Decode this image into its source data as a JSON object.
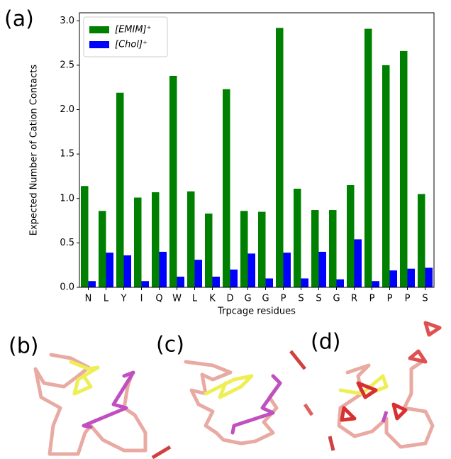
{
  "chart_data": {
    "type": "bar",
    "panel_label": "(a)",
    "categories": [
      "N",
      "L",
      "Y",
      "I",
      "Q",
      "W",
      "L",
      "K",
      "D",
      "G",
      "G",
      "P",
      "S",
      "S",
      "G",
      "R",
      "P",
      "P",
      "P",
      "S"
    ],
    "series": [
      {
        "name": "[EMIM]⁺",
        "color": "#008000",
        "values": [
          1.14,
          0.86,
          2.19,
          1.01,
          1.07,
          2.38,
          1.08,
          0.83,
          2.23,
          0.86,
          0.85,
          2.92,
          1.11,
          0.87,
          0.87,
          1.15,
          2.91,
          2.5,
          2.66,
          1.05
        ]
      },
      {
        "name": "[Chol]⁺",
        "color": "#0000ff",
        "values": [
          0.07,
          0.39,
          0.36,
          0.07,
          0.4,
          0.12,
          0.31,
          0.12,
          0.2,
          0.38,
          0.1,
          0.39,
          0.1,
          0.4,
          0.09,
          0.54,
          0.07,
          0.19,
          0.21,
          0.22
        ]
      }
    ],
    "ylim": [
      0,
      3.09
    ],
    "yticks": [
      {
        "value": 0,
        "label": "0.0"
      },
      {
        "value": 0.5,
        "label": "0.5"
      },
      {
        "value": 1,
        "label": "1.0"
      },
      {
        "value": 1.5,
        "label": "1.5"
      },
      {
        "value": 2,
        "label": "2.0"
      },
      {
        "value": 2.5,
        "label": "2.5"
      },
      {
        "value": 3,
        "label": "3.0"
      }
    ],
    "ylabel": "Expected Number of Cation Contacts",
    "xlabel": "Trpcage residues",
    "legend": "upper-left",
    "grid": false
  },
  "panels": [
    "(b)",
    "(c)",
    "(d)"
  ]
}
